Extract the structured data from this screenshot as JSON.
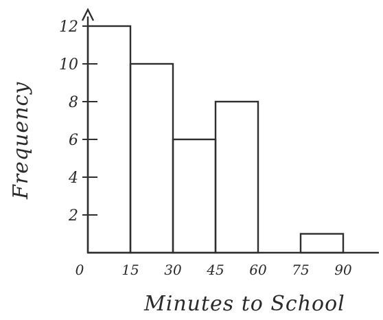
{
  "chart_data": {
    "type": "bar",
    "title": "",
    "xlabel": "Minutes to School",
    "ylabel": "Frequency",
    "x_tick_labels": [
      "0",
      "15",
      "30",
      "45",
      "60",
      "75",
      "90"
    ],
    "y_tick_labels": [
      "2",
      "4",
      "6",
      "8",
      "10",
      "12"
    ],
    "ylim": [
      0,
      12
    ],
    "xlim": [
      0,
      90
    ],
    "bins": [
      {
        "start": 0,
        "end": 15,
        "value": 12
      },
      {
        "start": 15,
        "end": 30,
        "value": 10
      },
      {
        "start": 30,
        "end": 45,
        "value": 6
      },
      {
        "start": 45,
        "end": 60,
        "value": 8
      },
      {
        "start": 60,
        "end": 75,
        "value": 0
      },
      {
        "start": 75,
        "end": 90,
        "value": 1
      }
    ],
    "grid": false,
    "legend": "none"
  }
}
